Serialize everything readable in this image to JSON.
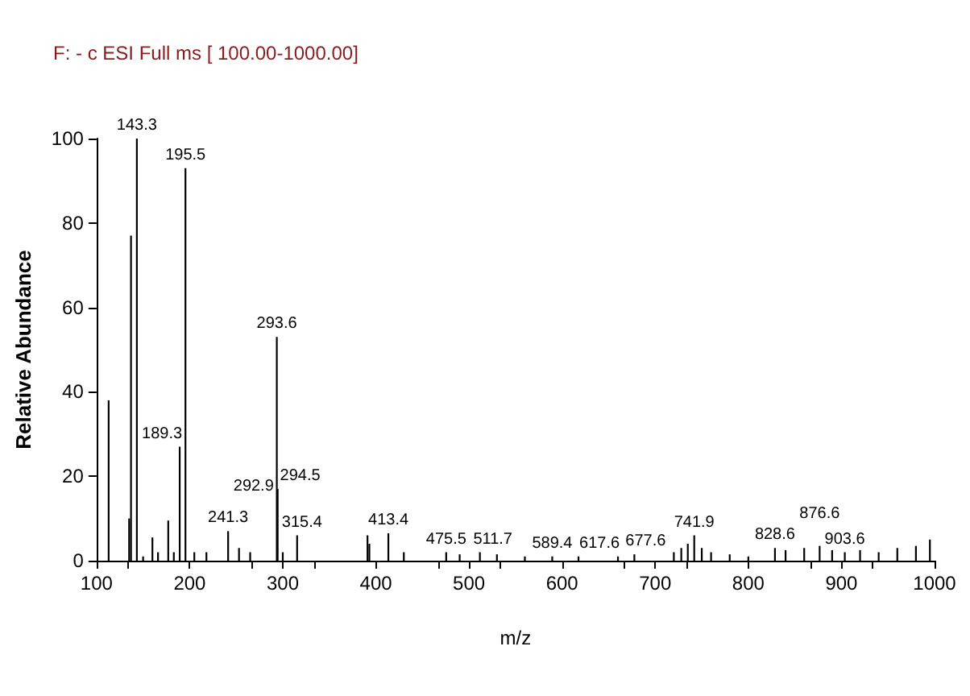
{
  "chart_data": {
    "type": "bar",
    "title": "F: - c ESI Full ms [ 100.00-1000.00]",
    "xlabel": "m/z",
    "ylabel": "Relative Abundance",
    "x": [
      113,
      135,
      137,
      143.3,
      150,
      160,
      166,
      177,
      183,
      189.3,
      195.5,
      205,
      218,
      241.3,
      253,
      265,
      292.9,
      293.6,
      294.5,
      300,
      315.4,
      391,
      393,
      413.4,
      430,
      475.5,
      490,
      511.7,
      530,
      560,
      589.4,
      617.6,
      660,
      677.6,
      720,
      728,
      735,
      741.9,
      750,
      760,
      780,
      800,
      828.6,
      840,
      860,
      876.6,
      890,
      903.6,
      920,
      940,
      960,
      980,
      995
    ],
    "values": [
      38,
      10,
      77,
      100,
      1,
      5.5,
      2,
      9.5,
      2,
      27,
      93,
      2,
      2,
      7,
      3,
      2,
      null,
      53,
      17,
      2,
      6,
      6,
      4,
      6.5,
      2,
      2,
      1.5,
      2,
      1.5,
      1,
      1,
      1,
      1,
      1.5,
      2,
      3,
      4,
      6,
      3,
      2,
      1.5,
      1,
      3,
      2.5,
      3,
      3.5,
      2.5,
      2,
      2.5,
      2,
      3,
      3.5,
      5
    ],
    "annotations": [
      {
        "text": "143.3",
        "x": 143.3,
        "y": 100
      },
      {
        "text": "189.3",
        "x": 189.3,
        "y": 27
      },
      {
        "text": "195.5",
        "x": 195.5,
        "y": 93
      },
      {
        "text": "241.3",
        "x": 241.3,
        "y": 7
      },
      {
        "text": "292.9",
        "x": 292.9,
        "y": 10
      },
      {
        "text": "293.6",
        "x": 293.6,
        "y": 53
      },
      {
        "text": "294.5",
        "x": 294.5,
        "y": 17
      },
      {
        "text": "315.4",
        "x": 315.4,
        "y": 6
      },
      {
        "text": "413.4",
        "x": 413.4,
        "y": 6.5
      },
      {
        "text": "475.5",
        "x": 475.5,
        "y": 2
      },
      {
        "text": "511.7",
        "x": 511.7,
        "y": 2
      },
      {
        "text": "589.4",
        "x": 589.4,
        "y": 1
      },
      {
        "text": "617.6",
        "x": 617.6,
        "y": 1
      },
      {
        "text": "677.6",
        "x": 677.6,
        "y": 1.5
      },
      {
        "text": "741.9",
        "x": 741.9,
        "y": 6
      },
      {
        "text": "828.6",
        "x": 828.6,
        "y": 3
      },
      {
        "text": "876.6",
        "x": 876.6,
        "y": 3.5
      },
      {
        "text": "903.6",
        "x": 903.6,
        "y": 2
      }
    ],
    "color": "#000000",
    "xlim": [
      100,
      1000
    ],
    "xticks": [
      100,
      200,
      300,
      400,
      500,
      600,
      700,
      800,
      900,
      1000
    ],
    "ylim": [
      0,
      100
    ],
    "yticks": [
      0,
      20,
      40,
      60,
      80,
      100
    ],
    "grid": false
  }
}
